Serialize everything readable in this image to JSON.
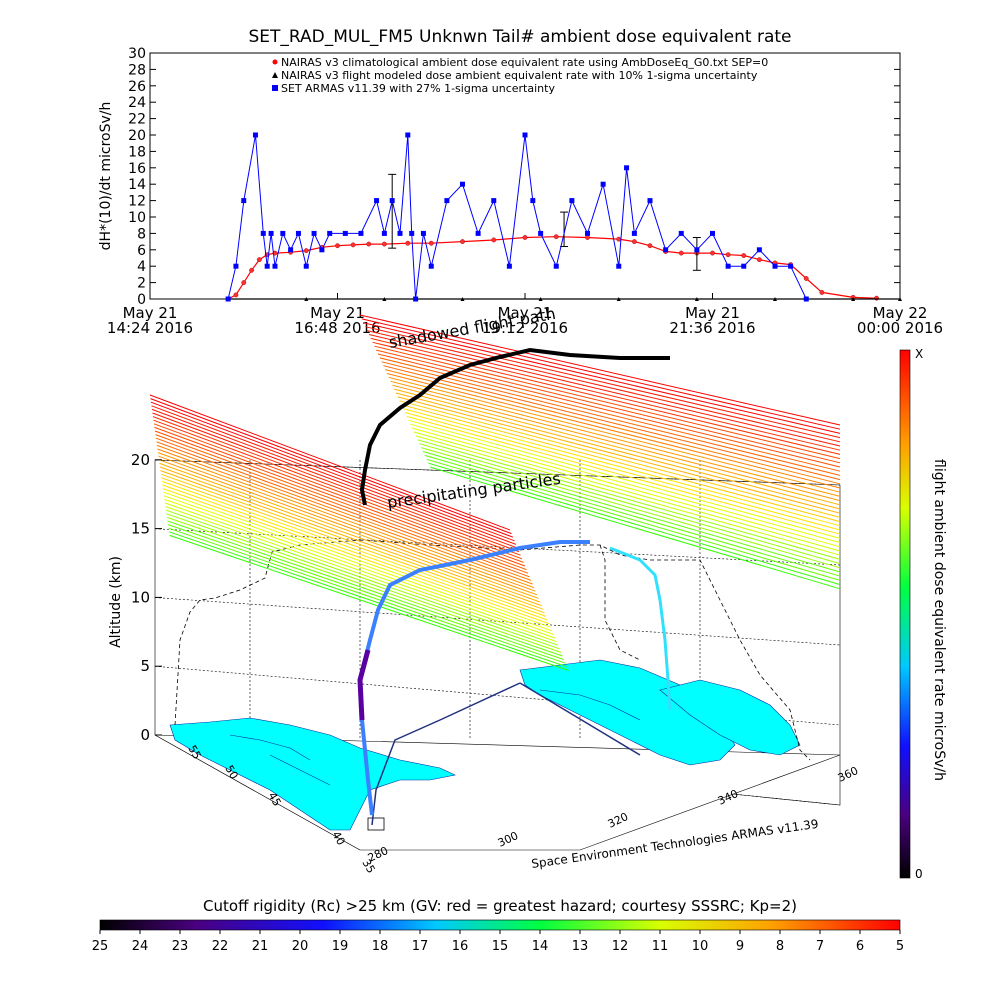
{
  "chart_data": [
    {
      "type": "line",
      "title": "SET_RAD_MUL_FM5 Unknwn Tail#  ambient dose equivalent rate",
      "ylabel": "dH*(10)/dt microSv/h",
      "ylim": [
        0,
        30
      ],
      "yticks": [
        0,
        2,
        4,
        6,
        8,
        10,
        12,
        14,
        16,
        18,
        20,
        22,
        24,
        26,
        28,
        30
      ],
      "xlim": [
        0,
        9.6
      ],
      "xticks": [
        {
          "t": 0,
          "line1": "May 21",
          "line2": "14:24 2016"
        },
        {
          "t": 2.4,
          "line1": "May 21",
          "line2": "16:48 2016"
        },
        {
          "t": 4.8,
          "line1": "May 21",
          "line2": "19:12 2016"
        },
        {
          "t": 7.2,
          "line1": "May 21",
          "line2": "21:36 2016"
        },
        {
          "t": 9.6,
          "line1": "May 22",
          "line2": "00:00 2016"
        }
      ],
      "legend": [
        {
          "name": "NAIRAS v3 climatological ambient dose equivalent rate using AmbDoseEq_G0.txt SEP=0",
          "color": "#ff0000",
          "marker": "diamond"
        },
        {
          "name": "NAIRAS v3 flight modeled dose ambient equivalent rate with 10% 1-sigma uncertainty",
          "color": "#000000",
          "marker": "triangle"
        },
        {
          "name": "SET ARMAS v11.39 with 27% 1-sigma uncertainty",
          "color": "#0000ff",
          "marker": "square"
        }
      ],
      "legend_position": "top-right",
      "series": [
        {
          "name": "NAIRAS v3 climatological ambient dose equivalent rate using AmbDoseEq_G0.txt SEP=0",
          "color": "#ff0000",
          "x": [
            1.0,
            1.1,
            1.2,
            1.3,
            1.4,
            1.5,
            1.6,
            1.8,
            2.0,
            2.2,
            2.4,
            2.6,
            2.8,
            3.0,
            3.3,
            3.6,
            4.0,
            4.4,
            4.8,
            5.2,
            5.6,
            6.0,
            6.2,
            6.4,
            6.6,
            6.8,
            7.0,
            7.2,
            7.4,
            7.6,
            7.8,
            8.0,
            8.2,
            8.4,
            8.6,
            9.0,
            9.3
          ],
          "values": [
            0,
            0.5,
            2,
            3.5,
            4.8,
            5.4,
            5.6,
            5.7,
            5.9,
            6.3,
            6.5,
            6.6,
            6.7,
            6.7,
            6.8,
            6.8,
            7.0,
            7.2,
            7.5,
            7.6,
            7.5,
            7.3,
            7.0,
            6.5,
            5.8,
            5.6,
            5.6,
            5.6,
            5.4,
            5.3,
            4.8,
            4.4,
            4.2,
            2.5,
            0.8,
            0.2,
            0.1
          ]
        },
        {
          "name": "NAIRAS v3 flight modeled dose ambient equivalent rate with 10% 1-sigma uncertainty",
          "color": "#000000",
          "x": [
            1.0,
            2.0,
            3.0,
            4.0,
            5.0,
            6.0,
            7.0,
            8.0,
            9.0,
            9.6
          ],
          "values": [
            0,
            0,
            0,
            0,
            0,
            0,
            0,
            0,
            0,
            0
          ],
          "error_bars": [
            {
              "x": 3.1,
              "low": 6.2,
              "high": 15.2
            },
            {
              "x": 5.3,
              "low": 6.4,
              "high": 10.6
            },
            {
              "x": 7.0,
              "low": 3.5,
              "high": 7.5
            }
          ]
        },
        {
          "name": "SET ARMAS v11.39 with 27% 1-sigma uncertainty",
          "color": "#0000ff",
          "x": [
            1.0,
            1.1,
            1.2,
            1.35,
            1.45,
            1.5,
            1.55,
            1.6,
            1.7,
            1.8,
            1.9,
            2.0,
            2.1,
            2.2,
            2.3,
            2.5,
            2.7,
            2.9,
            3.0,
            3.1,
            3.2,
            3.3,
            3.35,
            3.4,
            3.5,
            3.6,
            3.8,
            4.0,
            4.2,
            4.4,
            4.6,
            4.8,
            4.9,
            5.0,
            5.2,
            5.4,
            5.6,
            5.8,
            6.0,
            6.1,
            6.2,
            6.4,
            6.6,
            6.8,
            7.0,
            7.2,
            7.4,
            7.6,
            7.8,
            8.0,
            8.2,
            8.4
          ],
          "values": [
            0,
            4,
            12,
            20,
            8,
            4,
            8,
            4,
            8,
            6,
            8,
            4,
            8,
            6,
            8,
            8,
            8,
            12,
            8,
            12,
            8,
            20,
            8,
            0,
            8,
            4,
            12,
            14,
            8,
            12,
            4,
            20,
            12,
            8,
            4,
            12,
            8,
            14,
            4,
            16,
            8,
            12,
            6,
            8,
            6,
            8,
            4,
            4,
            6,
            4,
            4,
            0
          ]
        }
      ]
    },
    {
      "type": "scatter",
      "title": "",
      "zlabel": "Altitude (km)",
      "zticks": [
        "0",
        "5",
        "10",
        "15",
        "20"
      ],
      "lat_ticks": [
        "35",
        "40",
        "45",
        "50",
        "55"
      ],
      "lon_ticks": [
        "280",
        "300",
        "320",
        "340",
        "360"
      ],
      "credit": "Space Environment Technologies ARMAS v11.39",
      "annotations": [
        "shadowed flight path",
        "precipitating particles"
      ],
      "x_annotation_overlap": "flight path",
      "colorbar": {
        "label": "flight ambient dose equivalent rate microSv/h",
        "top": "X",
        "bottom": "0"
      },
      "flight_path": {
        "lon": [
          283,
          284,
          285,
          288,
          292,
          300,
          310,
          320,
          328,
          334,
          338,
          341,
          342,
          342.5
        ],
        "lat": [
          36,
          38,
          40,
          42,
          44,
          46,
          47,
          48,
          49,
          50,
          51,
          52,
          53,
          54
        ],
        "alt_km": [
          0,
          3,
          7,
          10,
          11,
          11.5,
          12,
          12.3,
          12.5,
          12.8,
          13,
          12.5,
          8,
          2
        ]
      }
    },
    {
      "type": "heatmap",
      "title": "Cutoff rigidity (Rc) >25 km (GV: red = greatest hazard; courtesy SSSRC; Kp=2)",
      "tick_labels": [
        "25",
        "24",
        "23",
        "22",
        "21",
        "20",
        "19",
        "18",
        "17",
        "16",
        "15",
        "14",
        "13",
        "12",
        "11",
        "10",
        "9",
        "8",
        "7",
        "6",
        "5"
      ],
      "range": [
        25,
        5
      ]
    }
  ]
}
